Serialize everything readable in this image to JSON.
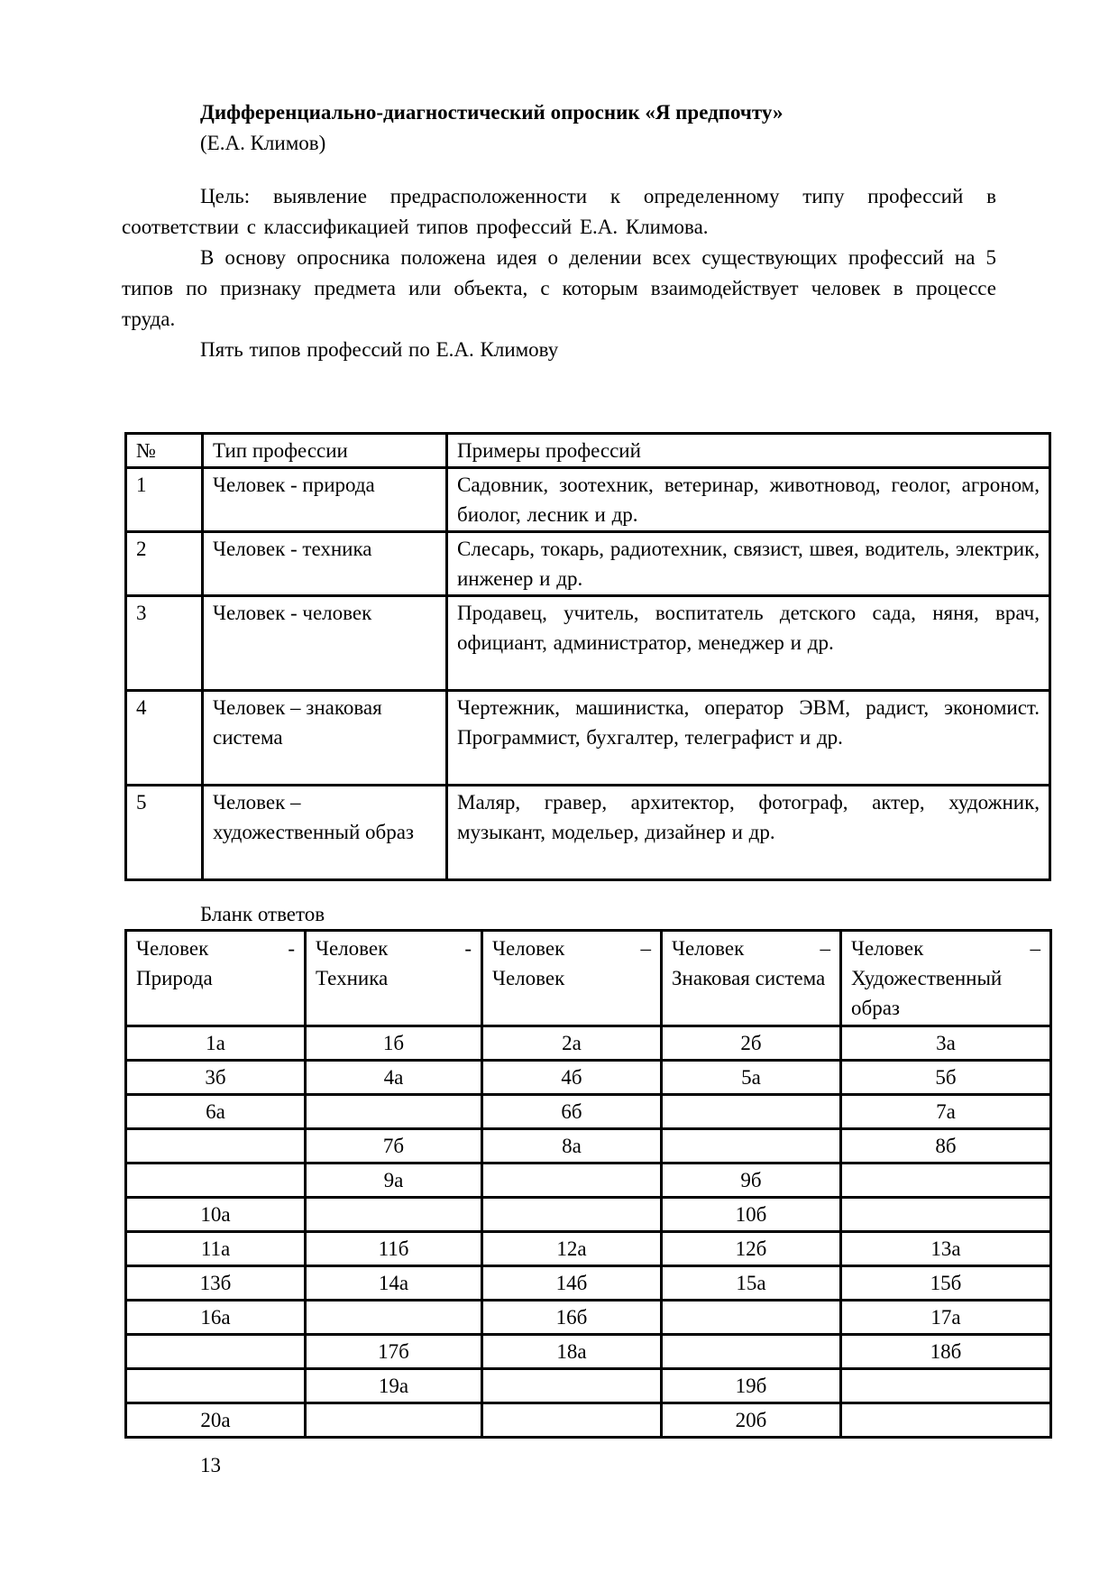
{
  "page": {
    "title": "Дифференциально-диагностический опросник «Я предпочту»",
    "subtitle": "(Е.А. Климов)",
    "paragraphs": [
      "Цель: выявление предрасположенности к определенному типу профессий в соответствии с классификацией типов профессий Е.А. Климова.",
      "В основу опросника положена идея о делении всех существующих профессий на 5 типов по признаку предмета или объекта, с которым взаимодействует человек в процессе труда."
    ],
    "types_intro": "Пять типов профессий по Е.А. Климову",
    "page_number": "13"
  },
  "types_table": {
    "headers": [
      "№",
      "Тип профессии",
      "Примеры профессий"
    ],
    "rows": [
      {
        "num": "1",
        "type": "Человек - природа",
        "examples": "Садовник, зоотехник, ветеринар, животновод, геолог, агроном, биолог, лесник и др."
      },
      {
        "num": "2",
        "type": "Человек - техника",
        "examples": "Слесарь, токарь, радиотехник, связист, швея, водитель, электрик, инженер и др."
      },
      {
        "num": "3",
        "type": "Человек - человек",
        "examples": "Продавец, учитель, воспитатель детского сада, няня, врач, официант, администратор, менеджер и др."
      },
      {
        "num": "4",
        "type": "Человек – знаковая система",
        "examples": "Чертежник, машинистка, оператор ЭВМ, радист, экономист. Программист, бухгалтер, телеграфист и др."
      },
      {
        "num": "5",
        "type": "Человек – художественный образ",
        "examples": "Маляр, гравер, архитектор, фотограф, актер, художник, музыкант, модельер, дизайнер и др."
      }
    ]
  },
  "answer_sheet": {
    "title": "Бланк ответов",
    "headers": [
      {
        "word": "Человек",
        "dash": "-",
        "rest": "Природа"
      },
      {
        "word": "Человек",
        "dash": "-",
        "rest": "Техника"
      },
      {
        "word": "Человек",
        "dash": "–",
        "rest": "Человек"
      },
      {
        "word": "Человек",
        "dash": "–",
        "rest": "Знаковая система"
      },
      {
        "word": "Человек",
        "dash": "–",
        "rest": "Художественный образ"
      }
    ],
    "rows": [
      [
        "1а",
        "1б",
        "2а",
        "2б",
        "3а"
      ],
      [
        "3б",
        "4а",
        "4б",
        "5а",
        "5б"
      ],
      [
        "6а",
        "",
        "6б",
        "",
        "7а"
      ],
      [
        "",
        "7б",
        "8а",
        "",
        "8б"
      ],
      [
        "",
        "9а",
        "",
        "9б",
        ""
      ],
      [
        "10а",
        "",
        "",
        "10б",
        ""
      ],
      [
        "11а",
        "11б",
        "12а",
        "12б",
        "13а"
      ],
      [
        "13б",
        "14а",
        "14б",
        "15а",
        "15б"
      ],
      [
        "16а",
        "",
        "16б",
        "",
        "17а"
      ],
      [
        "",
        "17б",
        "18а",
        "",
        "18б"
      ],
      [
        "",
        "19а",
        "",
        "19б",
        ""
      ],
      [
        "20а",
        "",
        "",
        "20б",
        ""
      ]
    ]
  }
}
